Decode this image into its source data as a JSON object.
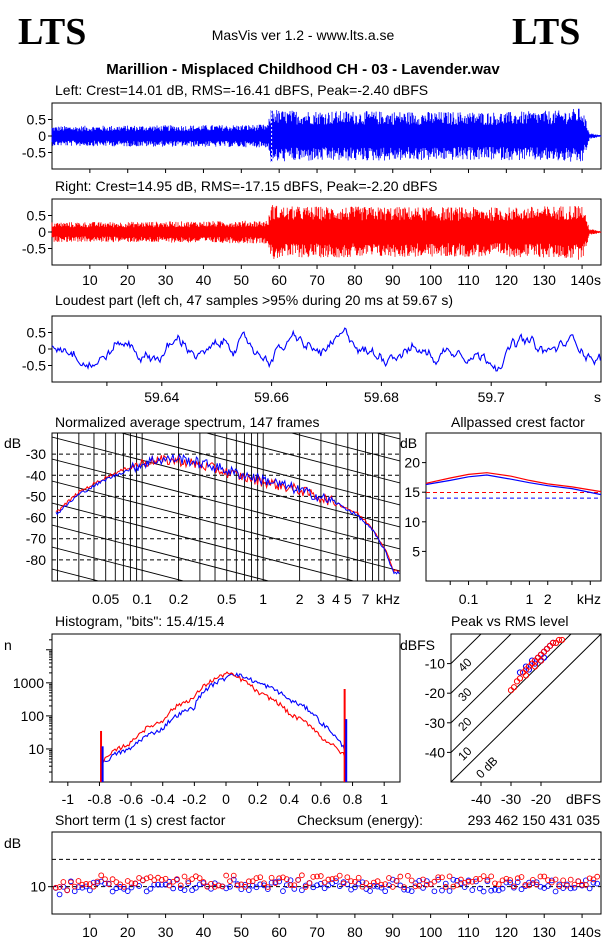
{
  "header": {
    "logo_left": "LTS",
    "logo_right": "LTS",
    "app_title": "MasVis ver 1.2 - www.lts.a.se",
    "track_title": "Marillion - Misplaced Childhood CH - 03 - Lavender.wav"
  },
  "colors": {
    "left_channel": "#0000ff",
    "right_channel": "#ff0000",
    "grid": "#000000"
  },
  "chart_data": [
    {
      "id": "left-waveform",
      "type": "area",
      "title": "Left: Crest=14.01 dB, RMS=-16.41 dBFS, Peak=-2.40 dBFS",
      "yticks": [
        "0.5",
        "0",
        "-0.5"
      ],
      "ylim": [
        -1,
        1
      ],
      "xlim": [
        0,
        145
      ],
      "envelope_x": [
        0,
        20,
        40,
        57,
        58,
        60,
        80,
        100,
        120,
        135,
        140,
        142,
        145
      ],
      "envelope_y": [
        0.3,
        0.32,
        0.33,
        0.35,
        0.9,
        0.78,
        0.76,
        0.74,
        0.73,
        0.78,
        0.86,
        0.1,
        0.02
      ]
    },
    {
      "id": "right-waveform",
      "type": "area",
      "title": "Right: Crest=14.95 dB, RMS=-17.15 dBFS, Peak=-2.20 dBFS",
      "yticks": [
        "0.5",
        "0",
        "-0.5"
      ],
      "ylim": [
        -1,
        1
      ],
      "xlim": [
        0,
        145
      ],
      "xticks": [
        "10",
        "20",
        "30",
        "40",
        "50",
        "60",
        "70",
        "80",
        "90",
        "100",
        "110",
        "120",
        "130",
        "140"
      ],
      "xunit": "s",
      "envelope_x": [
        0,
        20,
        40,
        57,
        58,
        60,
        80,
        100,
        120,
        135,
        140,
        142,
        145
      ],
      "envelope_y": [
        0.3,
        0.31,
        0.33,
        0.35,
        0.88,
        0.78,
        0.77,
        0.76,
        0.75,
        0.8,
        0.85,
        0.1,
        0.02
      ]
    },
    {
      "id": "loudest-part",
      "type": "line",
      "title": "Loudest part (left  ch, 47 samples >95% during 20 ms at 59.67 s)",
      "yticks": [
        "0.5",
        "0",
        "-0.5"
      ],
      "xticks": [
        "59.64",
        "59.66",
        "59.68",
        "59.7"
      ],
      "xunit": "s",
      "xlim": [
        59.62,
        59.72
      ],
      "ylim": [
        -1,
        1
      ]
    },
    {
      "id": "avg-spectrum",
      "type": "line",
      "title": "Normalized average spectrum, 147 frames",
      "ylabel": "dB",
      "yticks": [
        "-30",
        "-40",
        "-50",
        "-60",
        "-70",
        "-80"
      ],
      "xticks": [
        "0.05",
        "0.1",
        "0.2",
        "0.5",
        "1",
        "2",
        "3",
        "4",
        "5",
        "7"
      ],
      "xunit": "kHz",
      "xscale": "log",
      "ylim": [
        -90,
        -20
      ],
      "series": [
        {
          "x": [
            0.02,
            0.03,
            0.05,
            0.08,
            0.12,
            0.2,
            0.35,
            0.6,
            1,
            2,
            4,
            6,
            8,
            10,
            12
          ],
          "y": [
            -57,
            -48,
            -41,
            -36,
            -33,
            -33,
            -36,
            -40,
            -43,
            -47,
            -53,
            -58,
            -65,
            -74,
            -85
          ]
        },
        {
          "x": [
            0.02,
            0.03,
            0.05,
            0.08,
            0.12,
            0.2,
            0.35,
            0.6,
            1,
            2,
            4,
            6,
            8,
            10,
            12
          ],
          "y": [
            -58,
            -49,
            -42,
            -37,
            -33,
            -32,
            -35,
            -39,
            -42,
            -47,
            -53,
            -59,
            -66,
            -75,
            -86
          ]
        }
      ]
    },
    {
      "id": "allpassed-crest",
      "type": "line",
      "title": "Allpassed crest factor",
      "ylabel": "dB",
      "yticks": [
        "20",
        "15",
        "10",
        "5"
      ],
      "xticks": [
        "0.1",
        "1",
        "2"
      ],
      "xunit": "kHz",
      "xscale": "log",
      "ylim": [
        0,
        25
      ],
      "xlim": [
        0.02,
        15
      ],
      "series": [
        {
          "x": [
            0.02,
            0.05,
            0.1,
            0.2,
            0.5,
            1,
            2,
            5,
            15
          ],
          "y": [
            16.3,
            17.0,
            17.6,
            17.9,
            17.2,
            16.6,
            16.1,
            15.6,
            14.6
          ]
        },
        {
          "x": [
            0.02,
            0.05,
            0.1,
            0.2,
            0.5,
            1,
            2,
            5,
            15
          ],
          "y": [
            16.5,
            17.4,
            18.0,
            18.3,
            17.7,
            17.0,
            16.4,
            15.9,
            15.1
          ]
        }
      ],
      "reference_lines": [
        14.0,
        14.95
      ]
    },
    {
      "id": "histogram",
      "type": "line",
      "title": "Histogram, \"bits\": 15.4/15.4",
      "ylabel": "n",
      "yticks": [
        "1000",
        "100",
        "10"
      ],
      "xticks": [
        "-1",
        "-0.8",
        "-0.6",
        "-0.4",
        "-0.2",
        "0",
        "0.2",
        "0.4",
        "0.6",
        "0.8",
        "1"
      ],
      "yscale": "log",
      "xlim": [
        -1.1,
        1.1
      ],
      "ylim": [
        1,
        30000
      ],
      "series": [
        {
          "x": [
            -0.8,
            -0.74,
            -0.7,
            -0.6,
            -0.4,
            -0.2,
            0,
            0.03,
            0.2,
            0.4,
            0.6,
            0.7,
            0.74,
            0.76
          ],
          "y": [
            3,
            5,
            7,
            10,
            40,
            180,
            1400,
            2000,
            1000,
            300,
            60,
            20,
            12,
            6
          ]
        },
        {
          "x": [
            -0.8,
            -0.74,
            -0.7,
            -0.6,
            -0.4,
            -0.2,
            -0.03,
            0,
            0.2,
            0.4,
            0.6,
            0.7,
            0.74,
            0.76
          ],
          "y": [
            3,
            6,
            9,
            15,
            70,
            350,
            1600,
            2000,
            500,
            110,
            22,
            10,
            7,
            5
          ]
        }
      ]
    },
    {
      "id": "peak-vs-rms",
      "type": "scatter",
      "title": "Peak vs RMS level",
      "ylabel": "dBFS",
      "xlabel": "dBFS",
      "yticks": [
        "-10",
        "-20",
        "-30",
        "-40"
      ],
      "xticks": [
        "-40",
        "-30",
        "-20"
      ],
      "xlim": [
        -50,
        0
      ],
      "ylim": [
        -50,
        0
      ],
      "diagonal_labels": [
        "40",
        "30",
        "20",
        "10",
        "0 dB"
      ],
      "series": [
        {
          "x": [
            -27,
            -25,
            -23,
            -21,
            -20,
            -19,
            -18,
            -17,
            -16,
            -22,
            -24,
            -20,
            -19
          ],
          "y": [
            -13,
            -11,
            -9,
            -8,
            -7,
            -6,
            -5,
            -4,
            -3,
            -10,
            -12,
            -9,
            -8
          ]
        },
        {
          "x": [
            -29,
            -27,
            -26,
            -25,
            -24,
            -23,
            -22,
            -21,
            -20,
            -19,
            -18,
            -17,
            -16,
            -15,
            -14,
            -13,
            -28,
            -30,
            -25,
            -22,
            -20
          ],
          "y": [
            -18,
            -15,
            -13,
            -12,
            -11,
            -10,
            -9,
            -8,
            -7,
            -6,
            -5,
            -4,
            -3,
            -3,
            -2,
            -2,
            -16,
            -19,
            -14,
            -11,
            -9
          ]
        }
      ]
    },
    {
      "id": "short-term-crest",
      "type": "scatter",
      "title": "Short term (1 s) crest factor",
      "checksum_label": "Checksum (energy):",
      "checksum_value": "293 462 150 431 035",
      "ylabel": "dB",
      "yticks": [
        "10"
      ],
      "xticks": [
        "10",
        "20",
        "30",
        "40",
        "50",
        "60",
        "70",
        "80",
        "90",
        "100",
        "110",
        "120",
        "130",
        "140"
      ],
      "xunit": "s",
      "xlim": [
        0,
        145
      ],
      "ylim": [
        5,
        20
      ],
      "reference_lines": [
        15,
        10
      ]
    }
  ]
}
